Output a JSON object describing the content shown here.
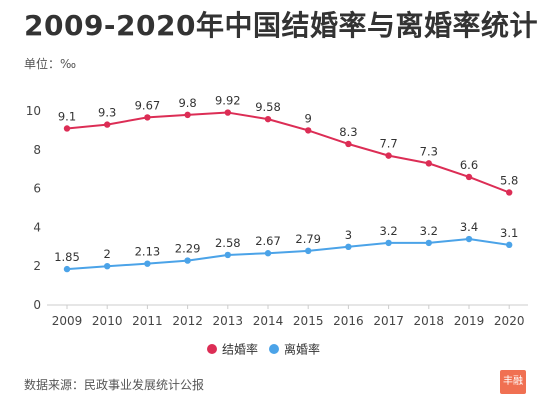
{
  "header": {
    "title": "2009-2020年中国结婚率与离婚率统计",
    "unit": "单位：‰"
  },
  "footer": {
    "source": "数据来源：民政事业发展统计公报",
    "logo_text": "丰融"
  },
  "chart_data": {
    "type": "line",
    "title": "2009-2020年中国结婚率与离婚率统计",
    "ylabel": "",
    "xlabel": "",
    "ylim": [
      0,
      10
    ],
    "yticks": [
      0,
      2,
      4,
      6,
      8,
      10
    ],
    "grid": false,
    "legend_position": "bottom",
    "x": [
      "2009",
      "2010",
      "2011",
      "2012",
      "2013",
      "2014",
      "2015",
      "2016",
      "2017",
      "2018",
      "2019",
      "2020"
    ],
    "series": [
      {
        "name": "结婚率",
        "color": "#dc2d55",
        "values": [
          9.1,
          9.3,
          9.67,
          9.8,
          9.92,
          9.58,
          9,
          8.3,
          7.7,
          7.3,
          6.6,
          5.8
        ],
        "labels": [
          "9.1",
          "9.3",
          "9.67",
          "9.8",
          "9.92",
          "9.58",
          "9",
          "8.3",
          "7.7",
          "7.3",
          "6.6",
          "5.8"
        ]
      },
      {
        "name": "离婚率",
        "color": "#4ba3e8",
        "values": [
          1.85,
          2,
          2.13,
          2.29,
          2.58,
          2.67,
          2.79,
          3,
          3.2,
          3.2,
          3.4,
          3.1
        ],
        "labels": [
          "1.85",
          "2",
          "2.13",
          "2.29",
          "2.58",
          "2.67",
          "2.79",
          "3",
          "3.2",
          "3.2",
          "3.4",
          "3.1"
        ]
      }
    ]
  }
}
